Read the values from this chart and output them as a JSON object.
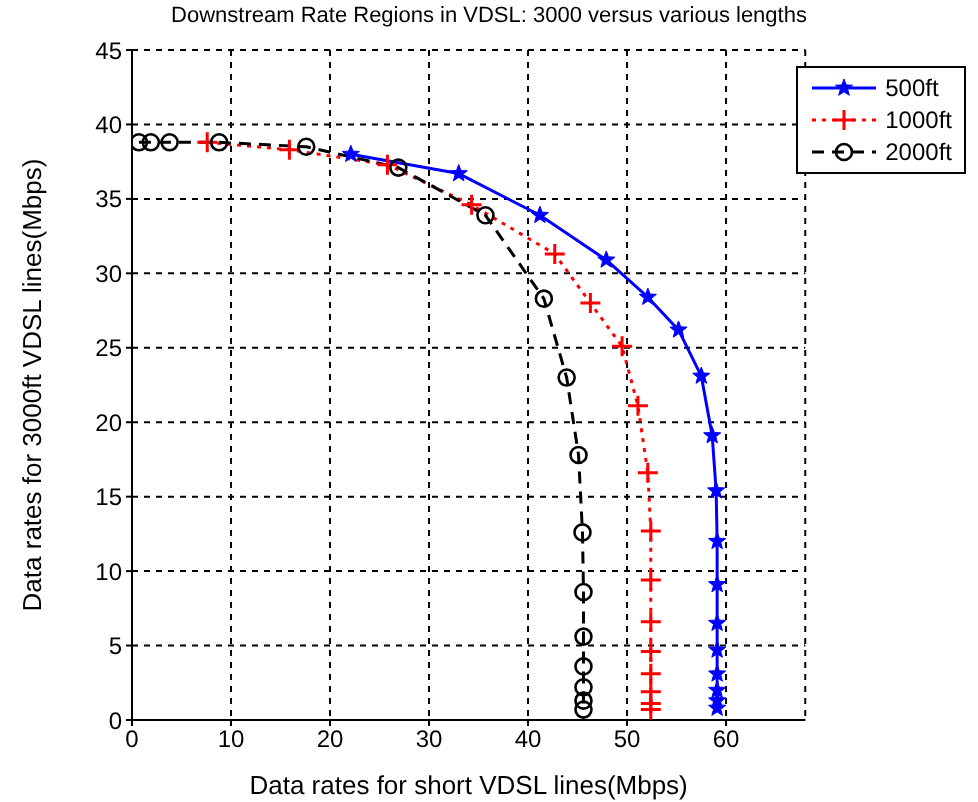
{
  "chart_data": {
    "type": "line",
    "title": "Downstream Rate Regions in VDSL: 3000 versus various lengths",
    "xlabel": "Data rates for short VDSL lines(Mbps)",
    "ylabel": "Data rates for 3000ft VDSL lines(Mbps)",
    "xlim": [
      0,
      68
    ],
    "xticks": [
      0,
      10,
      20,
      30,
      40,
      50,
      60
    ],
    "ylim": [
      0,
      45
    ],
    "yticks": [
      0,
      5,
      10,
      15,
      20,
      25,
      30,
      35,
      40,
      45
    ],
    "grid": true,
    "legend": "top right",
    "series": [
      {
        "name": "500ft",
        "color": "#0000ff",
        "line_style": "solid",
        "marker": "star",
        "x": [
          22.1,
          33.0,
          41.2,
          47.9,
          52.1,
          55.2,
          57.5,
          58.6,
          59.0,
          59.1,
          59.1,
          59.1,
          59.1,
          59.1,
          59.1,
          59.1,
          59.1
        ],
        "values": [
          38.0,
          36.7,
          33.9,
          30.9,
          28.4,
          26.2,
          23.1,
          19.1,
          15.4,
          12.0,
          9.1,
          6.5,
          4.7,
          3.1,
          2.0,
          1.3,
          0.8
        ]
      },
      {
        "name": "1000ft",
        "color": "#ff0000",
        "line_style": "dotted",
        "marker": "cross",
        "x": [
          7.6,
          15.9,
          25.8,
          34.3,
          42.7,
          46.3,
          49.5,
          51.1,
          52.1,
          52.4,
          52.4,
          52.4,
          52.4,
          52.4,
          52.4,
          52.4,
          52.4
        ],
        "values": [
          38.8,
          38.3,
          37.3,
          34.6,
          31.3,
          28.0,
          25.1,
          21.1,
          16.6,
          12.7,
          9.4,
          6.6,
          4.6,
          3.1,
          1.9,
          1.1,
          0.7
        ]
      },
      {
        "name": "2000ft",
        "color": "#000000",
        "line_style": "dashed",
        "marker": "circle",
        "x": [
          0.7,
          1.9,
          3.8,
          8.8,
          17.6,
          26.9,
          35.7,
          41.6,
          43.9,
          45.1,
          45.5,
          45.6,
          45.6,
          45.6,
          45.6,
          45.6,
          45.6
        ],
        "values": [
          38.8,
          38.8,
          38.8,
          38.8,
          38.5,
          37.1,
          33.9,
          28.3,
          23.0,
          17.8,
          12.6,
          8.6,
          5.6,
          3.6,
          2.2,
          1.3,
          0.7
        ]
      }
    ]
  }
}
